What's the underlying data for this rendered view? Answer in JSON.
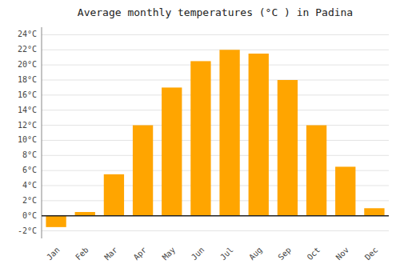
{
  "chart_data": {
    "type": "bar",
    "title": "Average monthly temperatures (°C ) in Padina",
    "categories": [
      "Jan",
      "Feb",
      "Mar",
      "Apr",
      "May",
      "Jun",
      "Jul",
      "Aug",
      "Sep",
      "Oct",
      "Nov",
      "Dec"
    ],
    "values": [
      -1.5,
      0.5,
      5.5,
      12.0,
      17.0,
      20.5,
      22.0,
      21.5,
      18.0,
      12.0,
      6.5,
      1.0
    ],
    "color": "#FFA500",
    "ylim": [
      -3,
      25
    ],
    "yticks": [
      {
        "value": -2,
        "label": "-2°C"
      },
      {
        "value": 0,
        "label": "0°C"
      },
      {
        "value": 2,
        "label": "2°C"
      },
      {
        "value": 4,
        "label": "4°C"
      },
      {
        "value": 6,
        "label": "6°C"
      },
      {
        "value": 8,
        "label": "8°C"
      },
      {
        "value": 10,
        "label": "10°C"
      },
      {
        "value": 12,
        "label": "12°C"
      },
      {
        "value": 14,
        "label": "14°C"
      },
      {
        "value": 16,
        "label": "16°C"
      },
      {
        "value": 18,
        "label": "18°C"
      },
      {
        "value": 20,
        "label": "20°C"
      },
      {
        "value": 22,
        "label": "22°C"
      },
      {
        "value": 24,
        "label": "24°C"
      }
    ],
    "grid": true
  }
}
